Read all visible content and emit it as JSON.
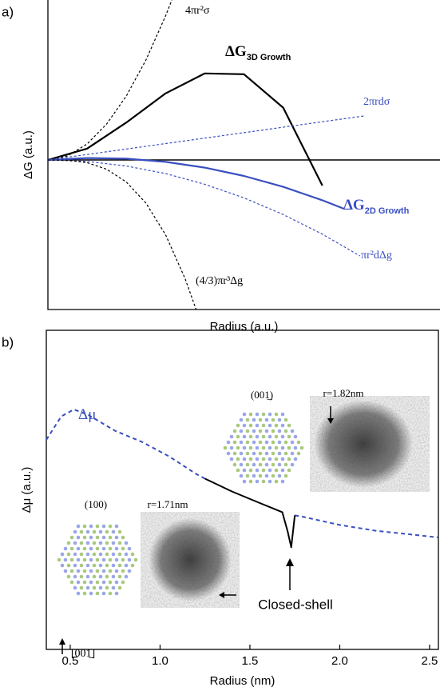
{
  "chart_data": [
    {
      "type": "line",
      "panel_label": "a)",
      "x_label": "Radius (a.u.)",
      "y_label": "ΔG (a.u.)",
      "xlim": [
        0,
        10
      ],
      "ylim": [
        -9.35,
        10
      ],
      "reference_line": 0,
      "series": [
        {
          "name": "4πr²σ",
          "color": "#000000",
          "dashed": true,
          "width": 1.2,
          "x": [
            0,
            0.5,
            1,
            1.5,
            2,
            2.5,
            3,
            3.16
          ],
          "values": [
            0,
            0.25,
            1,
            2.25,
            4,
            6.25,
            9,
            10
          ]
        },
        {
          "name": "ΔG",
          "name_sub": "3D Growth",
          "color": "#000000",
          "dashed": false,
          "width": 2.2,
          "x": [
            0,
            1,
            2,
            3,
            4,
            5,
            6,
            7
          ],
          "values": [
            0,
            0.71,
            2.34,
            4.16,
            5.41,
            5.36,
            3.27,
            -1.6
          ]
        },
        {
          "name": "2πrdσ",
          "color": "#3a4fc0",
          "dashed": true,
          "width": 1.2,
          "x": [
            0,
            8.06
          ],
          "values": [
            0,
            2.75
          ]
        },
        {
          "name": "ΔG",
          "name_sub": "2D Growth",
          "color": "#3a4fc0",
          "dashed": false,
          "width": 2.2,
          "x": [
            0,
            1,
            2,
            3,
            4,
            5,
            6,
            7,
            7.55
          ],
          "values": [
            0,
            0.12,
            0.08,
            -0.12,
            -0.48,
            -1.0,
            -1.68,
            -2.52,
            -3.05
          ]
        },
        {
          "name": "πr²dΔg",
          "color": "#3a4fc0",
          "dashed": true,
          "width": 1.2,
          "x": [
            0,
            1,
            2,
            3,
            4,
            5,
            6,
            7,
            7.96
          ],
          "values": [
            0,
            -0.09,
            -0.38,
            -0.85,
            -1.52,
            -2.37,
            -3.41,
            -4.64,
            -6.0
          ]
        },
        {
          "name": "(4/3)πr³Δg",
          "color": "#000000",
          "dashed": true,
          "width": 1.2,
          "x": [
            0,
            0.5,
            1,
            1.5,
            2,
            2.5,
            3,
            3.5,
            3.78
          ],
          "values": [
            0,
            -0.02,
            -0.17,
            -0.58,
            -1.38,
            -2.7,
            -4.67,
            -7.42,
            -9.35
          ]
        }
      ]
    },
    {
      "type": "line",
      "panel_label": "b)",
      "x_label": "Radius (nm)",
      "y_label": "Δμ (a.u.)",
      "xlim": [
        0.367,
        2.549
      ],
      "ylim": [
        0,
        10
      ],
      "xticks": [
        0.5,
        {
          "value": 1,
          "label": "1.0"
        },
        1.5,
        {
          "value": 2,
          "label": "2.0"
        },
        2.5
      ],
      "series": [
        {
          "name": "Δμ",
          "color": "#3a4fc0",
          "dashed": true,
          "width": 2,
          "x": [
            0.367,
            0.45,
            0.52,
            0.6,
            0.75,
            0.9,
            1.05,
            1.2,
            1.25,
            1.5,
            1.75,
            1.8,
            2.0,
            2.2,
            2.4,
            2.549
          ],
          "values": [
            6.57,
            7.3,
            7.52,
            7.35,
            6.85,
            6.5,
            6.05,
            5.5,
            5.35,
            null,
            4.2,
            4.15,
            3.9,
            3.72,
            3.6,
            3.51
          ]
        },
        {
          "color": "#000000",
          "dashed": false,
          "width": 2,
          "x": [
            1.25,
            1.4,
            1.55,
            1.68,
            1.71,
            1.73,
            1.75
          ],
          "values": [
            5.35,
            4.95,
            4.6,
            4.3,
            3.7,
            3.2,
            4.2
          ]
        }
      ],
      "annotations": [
        "(001̲)",
        "r=1.82nm",
        "(100)",
        "r=1.71nm",
        "Closed-shell",
        "[001̲]"
      ]
    }
  ]
}
